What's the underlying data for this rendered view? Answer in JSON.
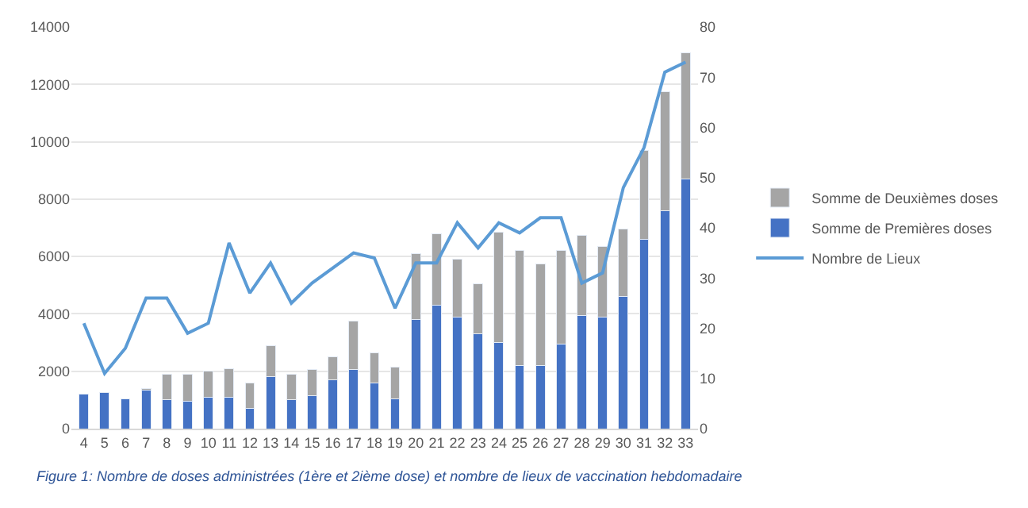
{
  "chart_data": {
    "type": "bar",
    "stacked": true,
    "categories": [
      "4",
      "5",
      "6",
      "7",
      "8",
      "9",
      "10",
      "11",
      "12",
      "13",
      "14",
      "15",
      "16",
      "17",
      "18",
      "19",
      "20",
      "21",
      "22",
      "23",
      "24",
      "25",
      "26",
      "27",
      "28",
      "29",
      "30",
      "31",
      "32",
      "33"
    ],
    "series": [
      {
        "name": "Somme de Premières doses",
        "color": "#4472c4",
        "values": [
          1200,
          1250,
          1050,
          1350,
          1000,
          950,
          1100,
          1100,
          700,
          1800,
          1000,
          1150,
          1700,
          2050,
          1600,
          1050,
          3800,
          4300,
          3900,
          3300,
          3000,
          2200,
          2200,
          2950,
          3950,
          3900,
          4600,
          6600,
          7600,
          8700
        ]
      },
      {
        "name": "Somme de Deuxièmes doses",
        "color": "#a5a5a5",
        "values": [
          null,
          null,
          null,
          50,
          900,
          950,
          900,
          1000,
          900,
          1100,
          900,
          900,
          800,
          1700,
          1050,
          1100,
          2300,
          2500,
          2000,
          1750,
          3850,
          4000,
          3550,
          3250,
          2800,
          2450,
          2350,
          3100,
          4150,
          4400
        ]
      },
      {
        "name": "Nombre de Lieux",
        "type": "line",
        "axis": "y2",
        "color": "#5b9bd5",
        "values": [
          21,
          11,
          16,
          26,
          26,
          19,
          21,
          37,
          27,
          33,
          25,
          29,
          32,
          35,
          34,
          24,
          33,
          33,
          41,
          36,
          41,
          39,
          42,
          42,
          29,
          31,
          48,
          56,
          71,
          73
        ]
      }
    ],
    "ylim": [
      0,
      14000
    ],
    "yticks": [
      0,
      2000,
      4000,
      6000,
      8000,
      10000,
      12000,
      14000
    ],
    "y2lim": [
      0,
      80
    ],
    "y2ticks": [
      0,
      10,
      20,
      30,
      40,
      50,
      60,
      70,
      80
    ],
    "grid": "y",
    "legend": "right",
    "marker": "none",
    "annotations": [
      "Figure 1: Nombre de doses administrées (1ère et 2ième dose) et nombre de lieux de vaccination hebdomadaire"
    ]
  }
}
